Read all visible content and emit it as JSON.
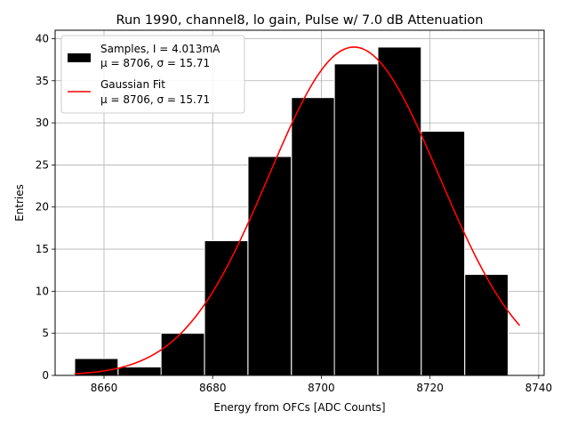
{
  "chart_data": {
    "type": "bar",
    "title": "Run 1990, channel8, lo gain, Pulse w/ 7.0 dB Attenuation",
    "xlabel": "Energy from OFCs [ADC Counts]",
    "ylabel": "Entries",
    "xlim": [
      8651,
      8741
    ],
    "ylim": [
      0,
      41
    ],
    "grid": true,
    "xticks": [
      8660,
      8680,
      8700,
      8720,
      8740
    ],
    "yticks": [
      0,
      5,
      10,
      15,
      20,
      25,
      30,
      35,
      40
    ],
    "histogram": {
      "name": "Samples",
      "color": "#000000",
      "bin_edges": [
        8654.6,
        8662.6,
        8670.5,
        8678.5,
        8686.5,
        8694.5,
        8702.4,
        8710.4,
        8718.4,
        8726.4,
        8734.3
      ],
      "bin_width": 7.98,
      "values": [
        2,
        1,
        5,
        16,
        26,
        33,
        37,
        39,
        29,
        12
      ]
    },
    "fit": {
      "name": "Gaussian Fit",
      "color": "#ff0000",
      "mu": 8706,
      "sigma": 15.71,
      "amplitude": 39,
      "x_range": [
        8654.6,
        8736.5
      ]
    },
    "legend": {
      "position": "top-left",
      "entries": [
        {
          "line1": "Samples, I = 4.013mA",
          "line2": "μ = 8706, σ = 15.71"
        },
        {
          "line1": "Gaussian Fit",
          "line2": "μ = 8706, σ = 15.71"
        }
      ]
    }
  }
}
